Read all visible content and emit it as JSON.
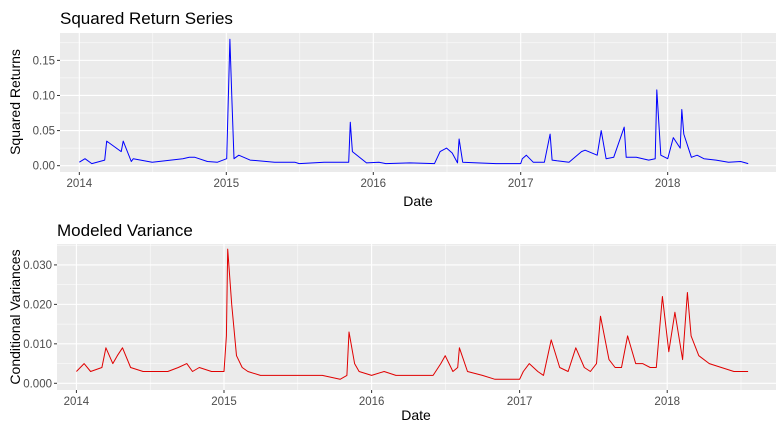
{
  "chart_data": [
    {
      "type": "line",
      "title": "Squared Return Series",
      "xlabel": "Date",
      "ylabel": "Squared Returns",
      "x_ticks": [
        "2014",
        "2015",
        "2016",
        "2017",
        "2018"
      ],
      "y_ticks": [
        "0.00",
        "0.05",
        "0.10",
        "0.15"
      ],
      "xlim": [
        "2013-11-14",
        "2018-09-27"
      ],
      "ylim": [
        -0.009,
        0.189
      ],
      "grid": true,
      "legend": "none",
      "series": [
        {
          "color": "#0000ff",
          "x": [
            "2014-01-01",
            "2014-01-15",
            "2014-02-01",
            "2014-03-05",
            "2014-03-10",
            "2014-04-15",
            "2014-04-20",
            "2014-05-10",
            "2014-05-15",
            "2014-07-01",
            "2014-09-15",
            "2014-10-01",
            "2014-10-15",
            "2014-11-15",
            "2014-12-10",
            "2015-01-02",
            "2015-01-10",
            "2015-01-15",
            "2015-01-20",
            "2015-02-01",
            "2015-03-01",
            "2015-05-01",
            "2015-06-20",
            "2015-07-01",
            "2015-09-01",
            "2015-11-01",
            "2015-11-05",
            "2015-11-10",
            "2015-12-15",
            "2016-01-15",
            "2016-02-01",
            "2016-04-01",
            "2016-06-01",
            "2016-06-15",
            "2016-07-01",
            "2016-07-15",
            "2016-07-28",
            "2016-08-01",
            "2016-08-10",
            "2016-09-15",
            "2016-11-01",
            "2017-01-01",
            "2017-01-05",
            "2017-01-15",
            "2017-02-01",
            "2017-03-01",
            "2017-03-15",
            "2017-03-20",
            "2017-04-01",
            "2017-05-01",
            "2017-06-01",
            "2017-06-10",
            "2017-07-10",
            "2017-07-20",
            "2017-08-01",
            "2017-08-20",
            "2017-09-15",
            "2017-09-20",
            "2017-10-15",
            "2017-11-15",
            "2017-12-01",
            "2017-12-05",
            "2017-12-15",
            "2018-01-01",
            "2018-01-15",
            "2018-02-01",
            "2018-02-05",
            "2018-02-10",
            "2018-03-01",
            "2018-03-15",
            "2018-04-01",
            "2018-05-01",
            "2018-06-01",
            "2018-07-01",
            "2018-07-20"
          ],
          "y": [
            0.005,
            0.01,
            0.003,
            0.008,
            0.035,
            0.02,
            0.035,
            0.006,
            0.01,
            0.005,
            0.01,
            0.012,
            0.012,
            0.006,
            0.005,
            0.01,
            0.18,
            0.09,
            0.01,
            0.015,
            0.008,
            0.005,
            0.005,
            0.003,
            0.005,
            0.005,
            0.062,
            0.02,
            0.004,
            0.005,
            0.003,
            0.004,
            0.003,
            0.02,
            0.025,
            0.018,
            0.004,
            0.038,
            0.005,
            0.004,
            0.003,
            0.003,
            0.01,
            0.015,
            0.005,
            0.005,
            0.045,
            0.008,
            0.007,
            0.005,
            0.02,
            0.022,
            0.015,
            0.05,
            0.01,
            0.012,
            0.055,
            0.012,
            0.012,
            0.008,
            0.01,
            0.108,
            0.015,
            0.01,
            0.04,
            0.025,
            0.08,
            0.045,
            0.012,
            0.015,
            0.01,
            0.008,
            0.005,
            0.006,
            0.003
          ]
        }
      ]
    },
    {
      "type": "line",
      "title": "Modeled Variance",
      "xlabel": "Date",
      "ylabel": "Conditional Variances",
      "x_ticks": [
        "2014",
        "2015",
        "2016",
        "2017",
        "2018"
      ],
      "y_ticks": [
        "0.000",
        "0.010",
        "0.020",
        "0.030"
      ],
      "xlim": [
        "2013-11-14",
        "2018-09-27"
      ],
      "ylim": [
        -0.0017,
        0.0353
      ],
      "grid": true,
      "legend": "none",
      "series": [
        {
          "color": "#e00000",
          "x": [
            "2014-01-01",
            "2014-01-20",
            "2014-02-05",
            "2014-03-05",
            "2014-03-15",
            "2014-04-01",
            "2014-04-12",
            "2014-04-25",
            "2014-05-15",
            "2014-06-15",
            "2014-07-15",
            "2014-08-15",
            "2014-09-10",
            "2014-10-01",
            "2014-10-15",
            "2014-11-01",
            "2014-12-01",
            "2015-01-01",
            "2015-01-07",
            "2015-01-10",
            "2015-01-20",
            "2015-02-01",
            "2015-02-15",
            "2015-03-01",
            "2015-04-01",
            "2015-05-01",
            "2015-06-01",
            "2015-07-01",
            "2015-08-01",
            "2015-09-01",
            "2015-10-15",
            "2015-11-01",
            "2015-11-06",
            "2015-11-20",
            "2015-12-01",
            "2016-01-01",
            "2016-02-01",
            "2016-03-01",
            "2016-04-01",
            "2016-05-01",
            "2016-06-01",
            "2016-06-20",
            "2016-07-01",
            "2016-07-20",
            "2016-08-01",
            "2016-08-05",
            "2016-08-25",
            "2016-10-01",
            "2016-11-01",
            "2016-12-01",
            "2017-01-01",
            "2017-01-10",
            "2017-01-25",
            "2017-02-15",
            "2017-03-01",
            "2017-03-20",
            "2017-04-10",
            "2017-05-01",
            "2017-05-20",
            "2017-06-10",
            "2017-06-25",
            "2017-07-10",
            "2017-07-20",
            "2017-08-10",
            "2017-08-25",
            "2017-09-10",
            "2017-09-25",
            "2017-10-15",
            "2017-11-01",
            "2017-11-20",
            "2017-12-05",
            "2017-12-20",
            "2018-01-05",
            "2018-01-20",
            "2018-02-08",
            "2018-02-20",
            "2018-03-01",
            "2018-03-20",
            "2018-04-15",
            "2018-05-15",
            "2018-06-15",
            "2018-07-01",
            "2018-07-20"
          ],
          "y": [
            0.003,
            0.005,
            0.003,
            0.004,
            0.009,
            0.005,
            0.007,
            0.009,
            0.004,
            0.003,
            0.003,
            0.003,
            0.004,
            0.005,
            0.003,
            0.004,
            0.003,
            0.003,
            0.012,
            0.034,
            0.02,
            0.007,
            0.004,
            0.003,
            0.002,
            0.002,
            0.002,
            0.002,
            0.002,
            0.002,
            0.001,
            0.002,
            0.013,
            0.005,
            0.003,
            0.002,
            0.003,
            0.002,
            0.002,
            0.002,
            0.002,
            0.005,
            0.007,
            0.003,
            0.004,
            0.009,
            0.003,
            0.002,
            0.001,
            0.001,
            0.001,
            0.003,
            0.005,
            0.003,
            0.002,
            0.011,
            0.004,
            0.003,
            0.009,
            0.004,
            0.003,
            0.005,
            0.017,
            0.006,
            0.004,
            0.004,
            0.012,
            0.005,
            0.005,
            0.004,
            0.004,
            0.022,
            0.008,
            0.018,
            0.006,
            0.023,
            0.012,
            0.007,
            0.005,
            0.004,
            0.003,
            0.003,
            0.003
          ]
        }
      ]
    }
  ]
}
